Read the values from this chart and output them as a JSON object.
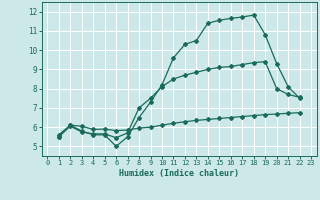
{
  "xlabel": "Humidex (Indice chaleur)",
  "bg_color": "#cce8e8",
  "grid_color": "#b0d8d8",
  "line_color": "#1a6b5a",
  "xlim": [
    -0.5,
    23.5
  ],
  "ylim": [
    4.5,
    12.5
  ],
  "xticks": [
    0,
    1,
    2,
    3,
    4,
    5,
    6,
    7,
    8,
    9,
    10,
    11,
    12,
    13,
    14,
    15,
    16,
    17,
    18,
    19,
    20,
    21,
    22,
    23
  ],
  "yticks": [
    5,
    6,
    7,
    8,
    9,
    10,
    11,
    12
  ],
  "line1_x": [
    1,
    2,
    3,
    4,
    5,
    6,
    7,
    8,
    9,
    10,
    11,
    12,
    13,
    14,
    15,
    16,
    17,
    18,
    19,
    20,
    21,
    22
  ],
  "line1_y": [
    5.5,
    6.1,
    5.8,
    5.6,
    5.6,
    5.0,
    5.5,
    6.5,
    7.3,
    8.2,
    9.6,
    10.3,
    10.5,
    11.4,
    11.55,
    11.65,
    11.72,
    11.82,
    10.8,
    9.3,
    8.1,
    7.5
  ],
  "line2_x": [
    1,
    2,
    3,
    4,
    5,
    6,
    7,
    8,
    9,
    10,
    11,
    12,
    13,
    14,
    15,
    16,
    17,
    18,
    19,
    20,
    21,
    22
  ],
  "line2_y": [
    5.5,
    6.05,
    5.75,
    5.65,
    5.65,
    5.45,
    5.7,
    7.0,
    7.5,
    8.1,
    8.5,
    8.7,
    8.85,
    9.0,
    9.1,
    9.15,
    9.25,
    9.35,
    9.4,
    8.0,
    7.7,
    7.55
  ],
  "line3_x": [
    1,
    2,
    3,
    4,
    5,
    6,
    7,
    8,
    9,
    10,
    11,
    12,
    13,
    14,
    15,
    16,
    17,
    18,
    19,
    20,
    21,
    22
  ],
  "line3_y": [
    5.6,
    6.1,
    6.05,
    5.88,
    5.9,
    5.82,
    5.85,
    5.95,
    6.0,
    6.1,
    6.2,
    6.28,
    6.35,
    6.4,
    6.45,
    6.5,
    6.55,
    6.6,
    6.65,
    6.68,
    6.72,
    6.75
  ],
  "markersize": 2.0,
  "linewidth": 0.9
}
